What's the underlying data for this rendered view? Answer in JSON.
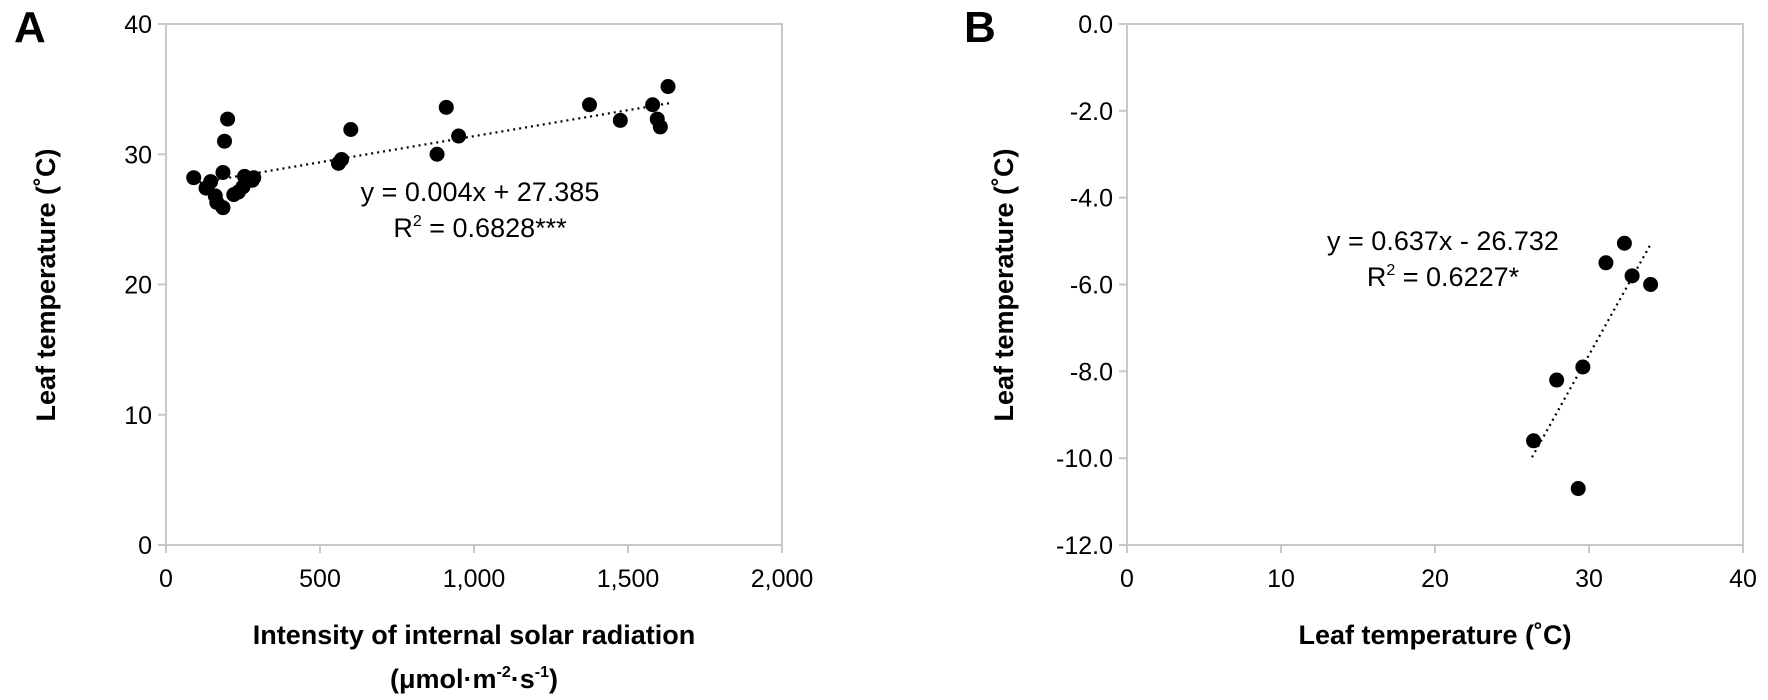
{
  "chart_data": [
    {
      "panel": "A",
      "type": "scatter",
      "xlabel": "Intensity of internal solar radiation",
      "xlabel_unit": {
        "prefix": "(μmol·m",
        "sup1": "-2",
        "mid": "·s",
        "sup2": "-1",
        "suffix": ")"
      },
      "ylabel": "Leaf temperature (˚C)",
      "xlim": [
        0,
        2000
      ],
      "ylim": [
        0,
        40
      ],
      "xticks": [
        0,
        500,
        1000,
        1500,
        2000
      ],
      "xtick_labels": [
        "0",
        "500",
        "1,000",
        "1,500",
        "2,000"
      ],
      "yticks": [
        0,
        10,
        20,
        30,
        40
      ],
      "ytick_labels": [
        "0",
        "10",
        "20",
        "30",
        "40"
      ],
      "points": [
        [
          90,
          28.2
        ],
        [
          130,
          27.4
        ],
        [
          145,
          27.9
        ],
        [
          160,
          26.8
        ],
        [
          165,
          26.3
        ],
        [
          185,
          25.9
        ],
        [
          185,
          28.6
        ],
        [
          190,
          31.0
        ],
        [
          200,
          32.7
        ],
        [
          220,
          26.9
        ],
        [
          235,
          27.1
        ],
        [
          250,
          27.5
        ],
        [
          255,
          28.3
        ],
        [
          280,
          28.0
        ],
        [
          285,
          28.2
        ],
        [
          560,
          29.3
        ],
        [
          570,
          29.6
        ],
        [
          600,
          31.9
        ],
        [
          880,
          30.0
        ],
        [
          910,
          33.6
        ],
        [
          950,
          31.4
        ],
        [
          1375,
          33.8
        ],
        [
          1475,
          32.6
        ],
        [
          1580,
          33.8
        ],
        [
          1595,
          32.7
        ],
        [
          1605,
          32.1
        ],
        [
          1630,
          35.2
        ]
      ],
      "trendline": {
        "slope": 0.004,
        "intercept": 27.385,
        "x_range": [
          90,
          1640
        ]
      },
      "equation": "y = 0.004x + 27.385",
      "r2": {
        "label": "R",
        "sup": "2",
        "value": " = 0.6828***"
      }
    },
    {
      "panel": "B",
      "type": "scatter",
      "xlabel": "Leaf temperature (˚C)",
      "ylabel": "Leaf temperature (˚C)",
      "xlim": [
        0,
        40
      ],
      "ylim": [
        -12,
        0
      ],
      "xticks": [
        0,
        10,
        20,
        30,
        40
      ],
      "xtick_labels": [
        "0",
        "10",
        "20",
        "30",
        "40"
      ],
      "yticks": [
        0,
        -2,
        -4,
        -6,
        -8,
        -10,
        -12
      ],
      "ytick_labels": [
        "0.0",
        "-2.0",
        "-4.0",
        "-6.0",
        "-8.0",
        "-10.0",
        "-12.0"
      ],
      "points": [
        [
          26.4,
          -9.6
        ],
        [
          27.9,
          -8.2
        ],
        [
          29.3,
          -10.7
        ],
        [
          29.6,
          -7.9
        ],
        [
          31.1,
          -5.5
        ],
        [
          32.3,
          -5.05
        ],
        [
          32.8,
          -5.8
        ],
        [
          34.0,
          -6.0
        ]
      ],
      "trendline": {
        "slope": 0.637,
        "intercept": -26.732,
        "x_range": [
          26.3,
          34.0
        ]
      },
      "equation": "y = 0.637x - 26.732",
      "r2": {
        "label": "R",
        "sup": "2",
        "value": " = 0.6227*"
      }
    }
  ]
}
